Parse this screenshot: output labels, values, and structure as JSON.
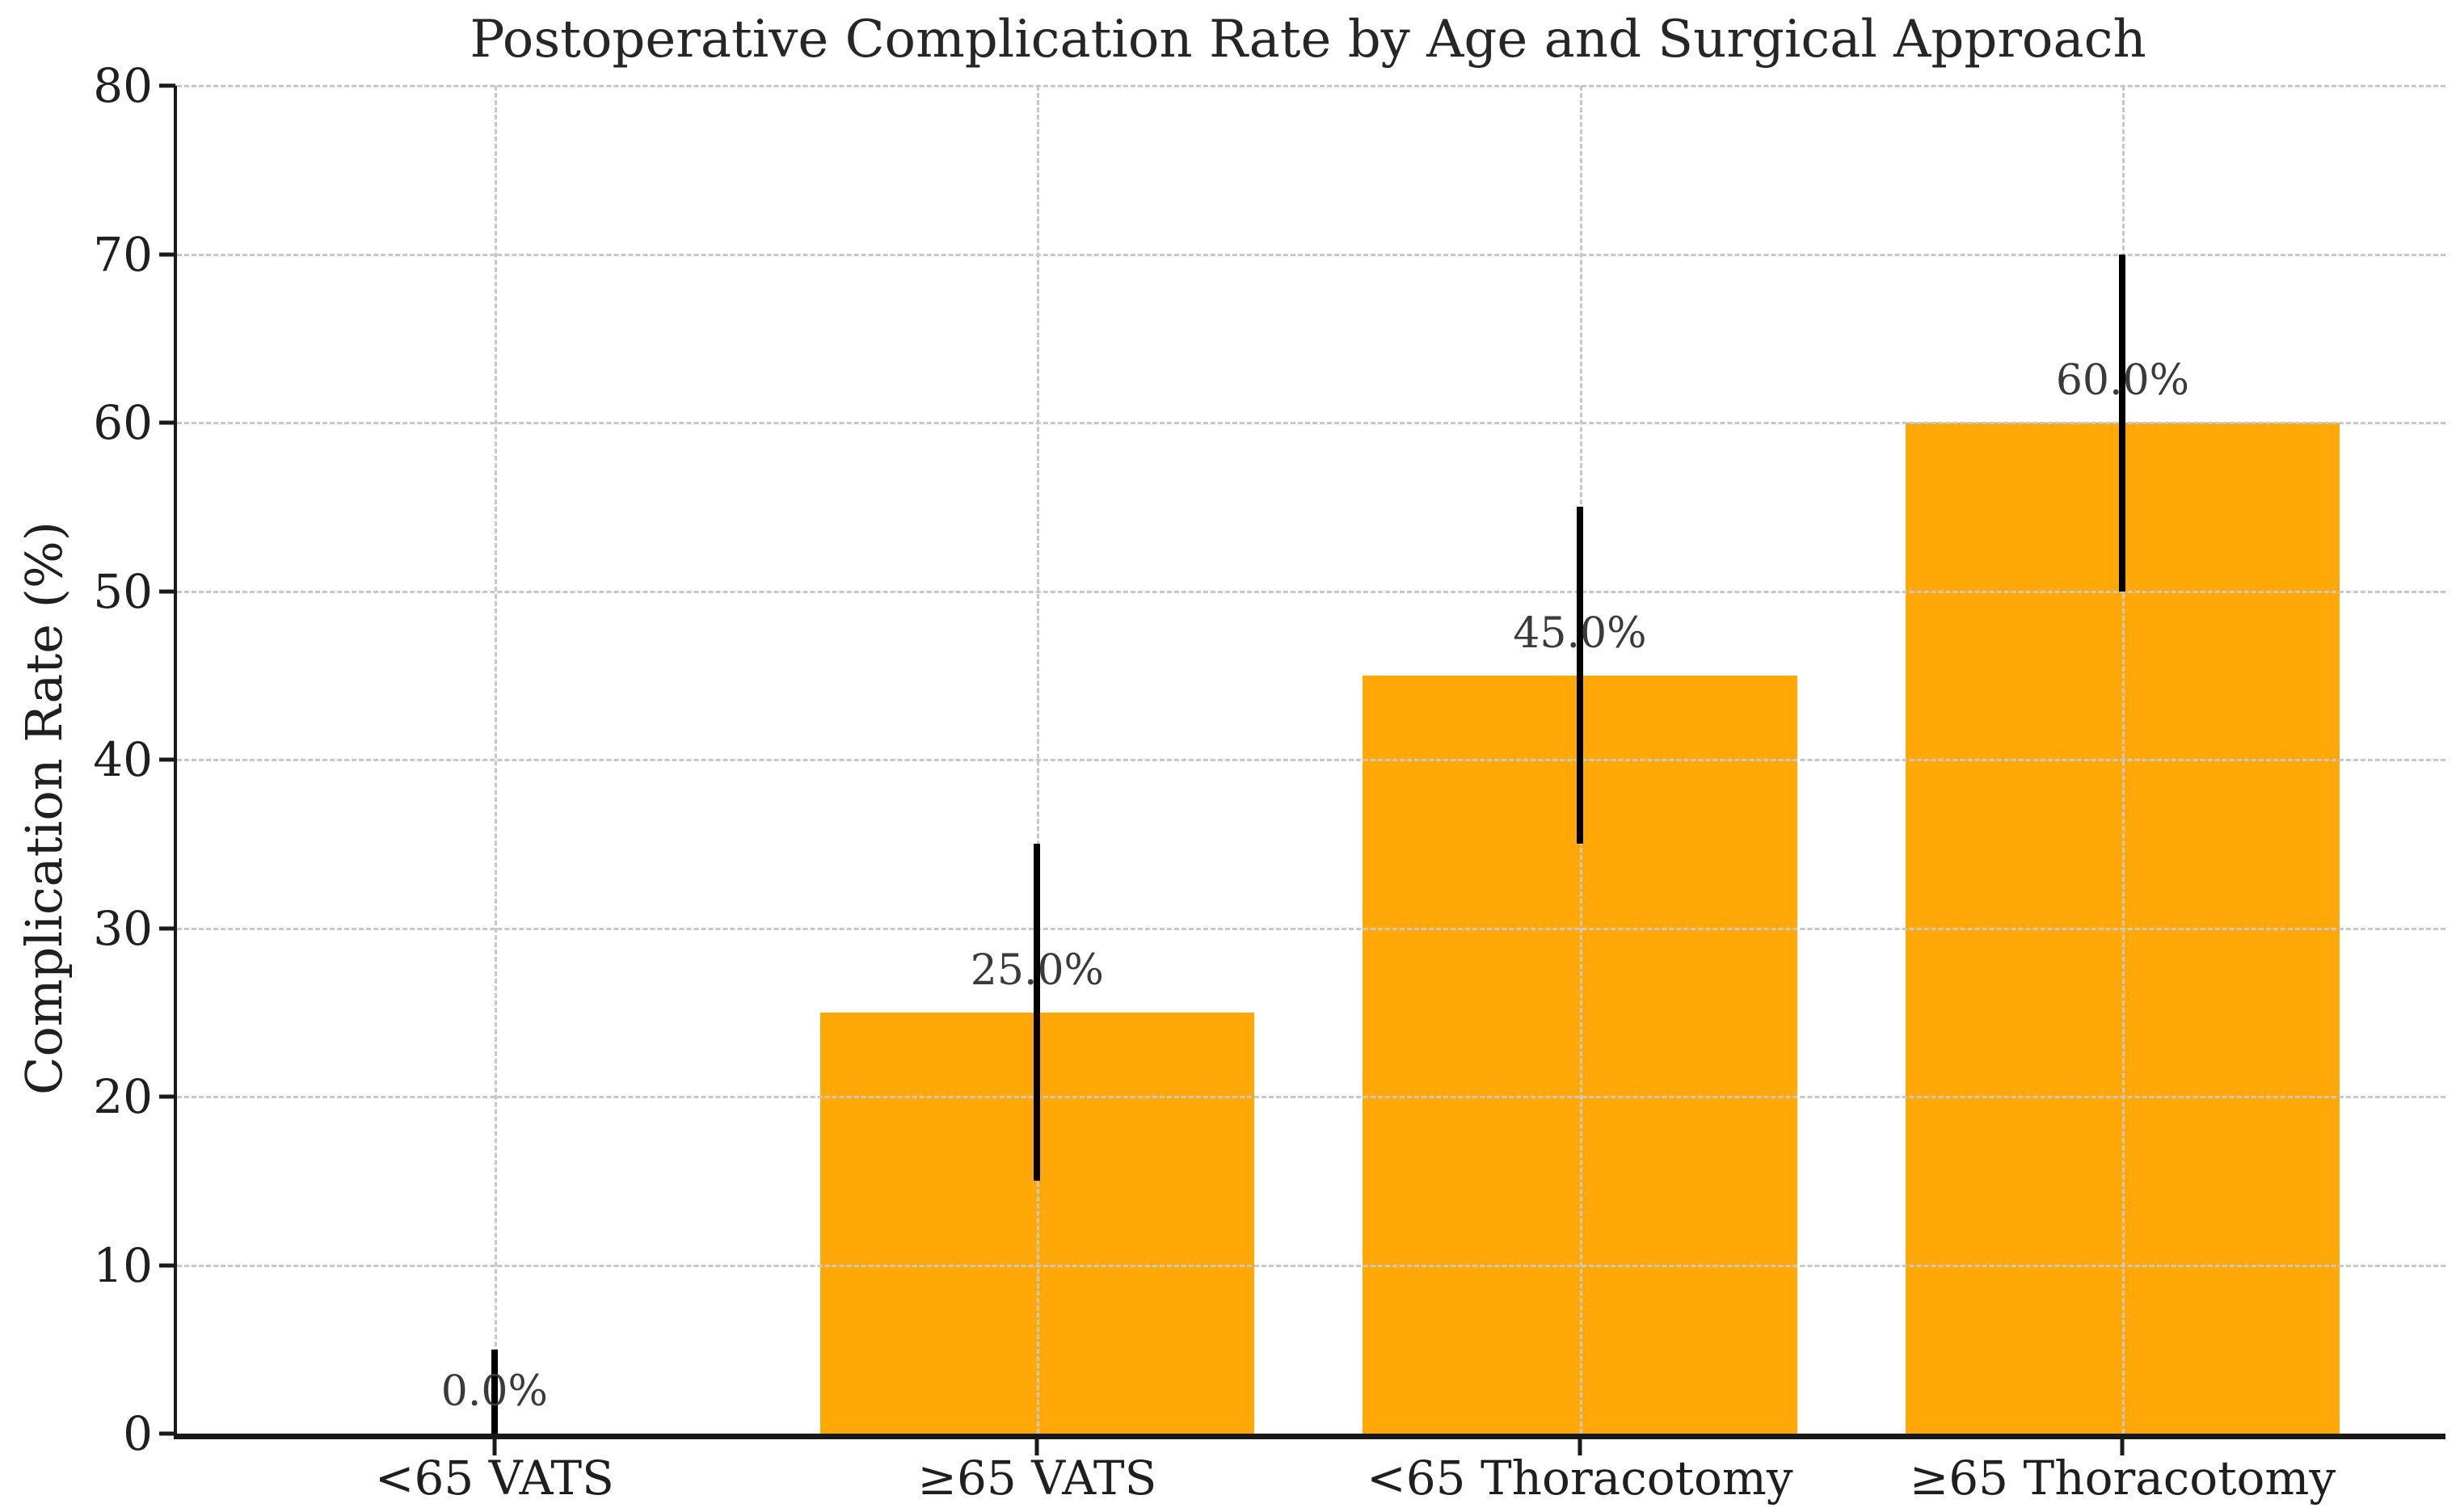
{
  "chart_data": {
    "type": "bar",
    "title": "Postoperative Complication Rate by Age and Surgical Approach",
    "xlabel": "",
    "ylabel": "Complication Rate (%)",
    "categories": [
      "<65 VATS",
      "≥65 VATS",
      "<65 Thoracotomy",
      "≥65 Thoracotomy"
    ],
    "values": [
      0.0,
      25.0,
      45.0,
      60.0
    ],
    "error_bars": [
      5.0,
      10.0,
      10.0,
      10.0
    ],
    "bar_labels": [
      "0.0%",
      "25.0%",
      "45.0%",
      "60.0%"
    ],
    "ylim": [
      0,
      80
    ],
    "yticks": [
      0,
      10,
      20,
      30,
      40,
      50,
      60,
      70,
      80
    ],
    "grid": "dashed, both axes, drawn above bars",
    "legend": "none",
    "bar_color": "#FFA808",
    "error_bar_color": "#000000",
    "grid_color": "#c8c8c8",
    "axis_color": "#1a1a1a",
    "text_color": "#262626"
  }
}
